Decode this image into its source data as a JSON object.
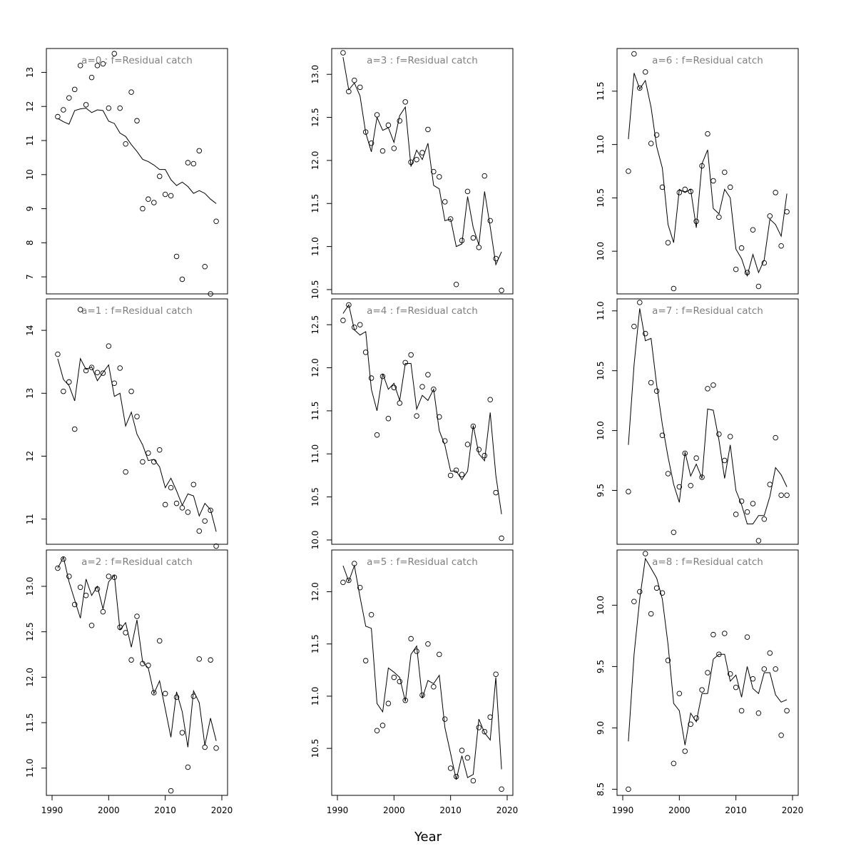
{
  "chart_data": {
    "type": "scatter",
    "xlabel": "Year",
    "years": [
      1991,
      1992,
      1993,
      1994,
      1995,
      1996,
      1997,
      1998,
      1999,
      2000,
      2001,
      2002,
      2003,
      2004,
      2005,
      2006,
      2007,
      2008,
      2009,
      2010,
      2011,
      2012,
      2013,
      2014,
      2015,
      2016,
      2017,
      2018,
      2019
    ],
    "xlim": [
      1990,
      2020
    ],
    "x_ticks": [
      1990,
      2000,
      2010,
      2020
    ],
    "layout": "3 columns x 3 rows",
    "panels": [
      {
        "title": "a=0  :  f=Residual catch",
        "ylim": [
          6.5,
          13.7
        ],
        "y_ticks": [
          7,
          8,
          9,
          10,
          11,
          12,
          13
        ],
        "observed": [
          11.7,
          11.9,
          12.25,
          12.5,
          13.2,
          12.05,
          12.85,
          13.2,
          13.25,
          11.95,
          13.55,
          11.95,
          10.9,
          12.42,
          11.58,
          9.0,
          9.28,
          9.18,
          9.95,
          9.42,
          9.38,
          7.6,
          6.93,
          10.35,
          10.32,
          10.7,
          7.3,
          6.5,
          8.63
        ],
        "fitted": [
          11.65,
          11.55,
          11.48,
          11.88,
          11.93,
          11.95,
          11.82,
          11.9,
          11.88,
          11.57,
          11.5,
          11.22,
          11.12,
          10.88,
          10.68,
          10.45,
          10.38,
          10.28,
          10.15,
          10.15,
          9.85,
          9.68,
          9.78,
          9.65,
          9.45,
          9.53,
          9.45,
          9.28,
          9.15
        ]
      },
      {
        "title": "a=1  :  f=Residual catch",
        "ylim": [
          10.6,
          14.5
        ],
        "y_ticks": [
          11,
          12,
          13,
          14
        ],
        "observed": [
          13.62,
          13.03,
          13.18,
          12.43,
          14.33,
          13.36,
          13.41,
          13.33,
          13.32,
          13.75,
          13.16,
          13.4,
          11.75,
          13.03,
          12.63,
          11.91,
          12.05,
          11.91,
          12.1,
          11.23,
          11.5,
          11.25,
          11.18,
          11.11,
          11.55,
          10.81,
          10.97,
          11.14,
          10.57
        ],
        "fitted": [
          13.55,
          13.22,
          13.12,
          12.88,
          13.55,
          13.38,
          13.42,
          13.2,
          13.33,
          13.45,
          12.95,
          13.0,
          12.48,
          12.7,
          12.35,
          12.18,
          11.93,
          11.95,
          11.83,
          11.5,
          11.65,
          11.45,
          11.22,
          11.4,
          11.37,
          11.05,
          11.25,
          11.15,
          10.8
        ]
      },
      {
        "title": "a=2  :  f=Residual catch",
        "ylim": [
          10.7,
          13.4
        ],
        "y_ticks": [
          11.0,
          11.5,
          12.0,
          12.5,
          13.0
        ],
        "observed": [
          13.2,
          13.3,
          13.11,
          12.8,
          12.99,
          12.9,
          12.57,
          12.97,
          12.72,
          13.11,
          13.1,
          12.55,
          12.49,
          12.19,
          12.67,
          12.15,
          12.13,
          11.83,
          12.4,
          11.82,
          10.75,
          11.78,
          11.39,
          11.01,
          11.79,
          12.2,
          11.23,
          12.19,
          11.22
        ],
        "fitted": [
          13.2,
          13.32,
          13.05,
          12.85,
          12.65,
          13.08,
          12.9,
          13.0,
          12.75,
          13.05,
          13.12,
          12.52,
          12.6,
          12.33,
          12.63,
          12.17,
          12.1,
          11.82,
          11.96,
          11.65,
          11.34,
          11.84,
          11.62,
          11.23,
          11.85,
          11.72,
          11.25,
          11.55,
          11.3
        ]
      },
      {
        "title": "a=3  :  f=Residual catch",
        "ylim": [
          10.45,
          13.3
        ],
        "y_ticks": [
          10.5,
          11.0,
          11.5,
          12.0,
          12.5,
          13.0
        ],
        "observed": [
          13.25,
          12.8,
          12.93,
          12.85,
          12.33,
          12.2,
          12.53,
          12.11,
          12.41,
          12.14,
          12.46,
          12.68,
          11.98,
          12.01,
          12.09,
          12.36,
          11.87,
          11.81,
          11.52,
          11.32,
          10.56,
          11.07,
          11.64,
          11.1,
          10.99,
          11.82,
          11.3,
          10.86,
          10.49
        ],
        "fitted": [
          13.2,
          12.82,
          12.9,
          12.75,
          12.32,
          12.1,
          12.5,
          12.35,
          12.38,
          12.21,
          12.52,
          12.62,
          11.93,
          12.12,
          12.01,
          12.2,
          11.71,
          11.67,
          11.3,
          11.32,
          11.0,
          11.03,
          11.58,
          11.22,
          11.02,
          11.64,
          11.23,
          10.79,
          10.94
        ]
      },
      {
        "title": "a=4  :  f=Residual catch",
        "ylim": [
          9.95,
          12.8
        ],
        "y_ticks": [
          10.0,
          10.5,
          11.0,
          11.5,
          12.0,
          12.5
        ],
        "observed": [
          12.55,
          12.73,
          12.47,
          12.5,
          12.18,
          11.88,
          11.22,
          11.9,
          11.41,
          11.77,
          11.59,
          12.06,
          12.15,
          11.44,
          11.78,
          11.92,
          11.75,
          11.43,
          11.15,
          10.75,
          10.81,
          10.76,
          11.11,
          11.32,
          11.05,
          10.98,
          11.63,
          10.55,
          10.02
        ],
        "fitted": [
          12.63,
          12.73,
          12.44,
          12.38,
          12.42,
          11.75,
          11.5,
          11.93,
          11.75,
          11.82,
          11.62,
          12.05,
          12.05,
          11.52,
          11.68,
          11.62,
          11.75,
          11.27,
          11.1,
          10.8,
          10.8,
          10.7,
          10.8,
          11.33,
          11.0,
          10.92,
          11.48,
          10.75,
          10.3
        ]
      },
      {
        "title": "a=5  :  f=Residual catch",
        "ylim": [
          10.05,
          12.4
        ],
        "y_ticks": [
          10.5,
          11.0,
          11.5,
          12.0
        ],
        "observed": [
          12.09,
          12.11,
          12.27,
          12.04,
          11.34,
          11.78,
          10.67,
          10.72,
          10.93,
          11.18,
          11.14,
          10.96,
          11.55,
          11.43,
          11.01,
          11.5,
          11.09,
          11.4,
          10.78,
          10.31,
          10.23,
          10.48,
          10.41,
          10.19,
          10.7,
          10.66,
          10.8,
          11.21,
          10.11
        ],
        "fitted": [
          12.25,
          12.1,
          12.25,
          11.95,
          11.67,
          11.65,
          10.93,
          10.85,
          11.27,
          11.23,
          11.18,
          10.95,
          11.4,
          11.48,
          10.98,
          11.15,
          11.12,
          11.2,
          10.7,
          10.45,
          10.2,
          10.43,
          10.22,
          10.25,
          10.78,
          10.65,
          10.58,
          11.18,
          10.3
        ]
      },
      {
        "title": "a=6  :  f=Residual catch",
        "ylim": [
          9.6,
          11.9
        ],
        "y_ticks": [
          10.0,
          10.5,
          11.0,
          11.5
        ],
        "observed": [
          10.75,
          11.85,
          11.53,
          11.68,
          11.01,
          11.09,
          10.6,
          10.08,
          9.65,
          10.55,
          10.58,
          10.56,
          10.28,
          10.8,
          11.1,
          10.66,
          10.32,
          10.74,
          10.6,
          9.83,
          10.03,
          9.8,
          10.2,
          9.67,
          9.89,
          10.33,
          10.55,
          10.05,
          10.37
        ],
        "fitted": [
          11.05,
          11.67,
          11.52,
          11.6,
          11.35,
          10.98,
          10.78,
          10.25,
          10.08,
          10.58,
          10.55,
          10.58,
          10.22,
          10.82,
          10.95,
          10.4,
          10.35,
          10.58,
          10.5,
          10.02,
          9.93,
          9.77,
          9.97,
          9.8,
          9.92,
          10.3,
          10.25,
          10.14,
          10.54
        ]
      },
      {
        "title": "a=7  :  f=Residual catch",
        "ylim": [
          9.05,
          11.1
        ],
        "y_ticks": [
          9.5,
          10.0,
          10.5,
          11.0
        ],
        "observed": [
          9.49,
          10.87,
          11.07,
          10.81,
          10.4,
          10.33,
          9.96,
          9.64,
          9.15,
          9.53,
          9.81,
          9.54,
          9.77,
          9.61,
          10.35,
          10.38,
          9.97,
          9.75,
          9.95,
          9.3,
          9.41,
          9.32,
          9.39,
          9.08,
          9.26,
          9.55,
          9.94,
          9.46,
          9.46
        ],
        "fitted": [
          9.88,
          10.55,
          11.02,
          10.75,
          10.77,
          10.38,
          10.05,
          9.78,
          9.55,
          9.4,
          9.82,
          9.62,
          9.72,
          9.6,
          10.18,
          10.17,
          9.92,
          9.6,
          9.88,
          9.5,
          9.38,
          9.22,
          9.22,
          9.29,
          9.29,
          9.45,
          9.69,
          9.63,
          9.53
        ]
      },
      {
        "title": "a=8  :  f=Residual catch",
        "ylim": [
          8.45,
          10.45
        ],
        "y_ticks": [
          8.5,
          9.0,
          9.5,
          10.0
        ],
        "observed": [
          8.5,
          10.03,
          10.11,
          10.42,
          9.93,
          10.14,
          10.1,
          9.55,
          8.71,
          9.28,
          8.81,
          9.03,
          9.08,
          9.31,
          9.45,
          9.76,
          9.6,
          9.77,
          9.44,
          9.33,
          9.14,
          9.74,
          9.4,
          9.12,
          9.48,
          9.61,
          9.48,
          8.94,
          9.14
        ],
        "fitted": [
          8.89,
          9.6,
          10.05,
          10.38,
          10.3,
          10.22,
          10.05,
          9.68,
          9.2,
          9.14,
          8.86,
          9.12,
          9.05,
          9.28,
          9.28,
          9.56,
          9.6,
          9.6,
          9.38,
          9.43,
          9.25,
          9.5,
          9.32,
          9.28,
          9.45,
          9.45,
          9.27,
          9.21,
          9.23
        ]
      }
    ]
  }
}
